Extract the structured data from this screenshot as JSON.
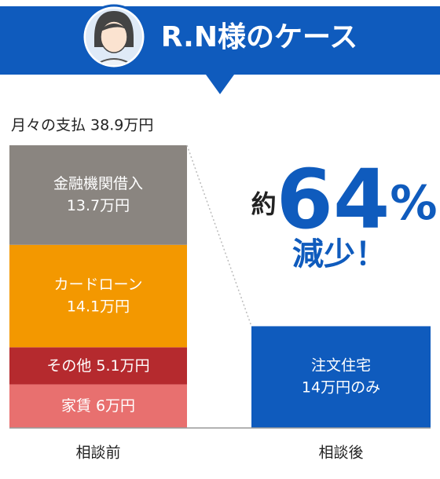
{
  "chart_data": {
    "type": "bar",
    "stacked": true,
    "title": "R.N様のケース",
    "subtitle": "月々の支払 38.9万円",
    "annotation": {
      "prefix": "約",
      "value": "64",
      "unit": "%",
      "suffix": "減少！"
    },
    "categories": [
      "相談前",
      "相談後"
    ],
    "series": [
      {
        "name": "家賃",
        "color": "#e8706f",
        "values": [
          6,
          null
        ],
        "value_labels": [
          "6万円",
          null
        ]
      },
      {
        "name": "その他",
        "color": "#b52a2e",
        "values": [
          5.1,
          null
        ],
        "value_labels": [
          "5.1万円",
          null
        ]
      },
      {
        "name": "カードローン",
        "color": "#f39800",
        "values": [
          14.1,
          null
        ],
        "value_labels": [
          "14.1万円",
          null
        ]
      },
      {
        "name": "金融機関借入",
        "color": "#8a8580",
        "values": [
          13.7,
          null
        ],
        "value_labels": [
          "13.7万円",
          null
        ]
      },
      {
        "name": "注文住宅",
        "color": "#0f5bbd",
        "values": [
          null,
          14
        ],
        "value_labels": [
          null,
          "14万円のみ"
        ]
      }
    ],
    "ylim": [
      0,
      38.9
    ]
  }
}
